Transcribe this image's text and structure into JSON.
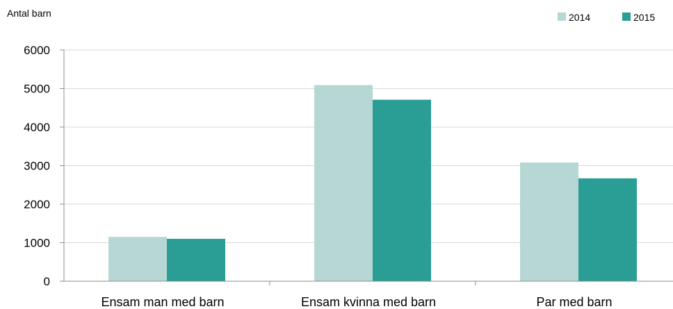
{
  "chart_data": {
    "type": "bar",
    "ylabel": "Antal barn",
    "xlabel": "",
    "categories": [
      "Ensam man med barn",
      "Ensam kvinna med barn",
      "Par med barn"
    ],
    "series": [
      {
        "name": "2014",
        "color": "#b6d7d4",
        "values": [
          1150,
          5090,
          3080
        ]
      },
      {
        "name": "2015",
        "color": "#2a9d94",
        "values": [
          1100,
          4710,
          2670
        ]
      }
    ],
    "ylim": [
      0,
      6000
    ],
    "yticks": [
      0,
      1000,
      2000,
      3000,
      4000,
      5000,
      6000
    ],
    "grid": true,
    "legend_position": "top-right"
  }
}
